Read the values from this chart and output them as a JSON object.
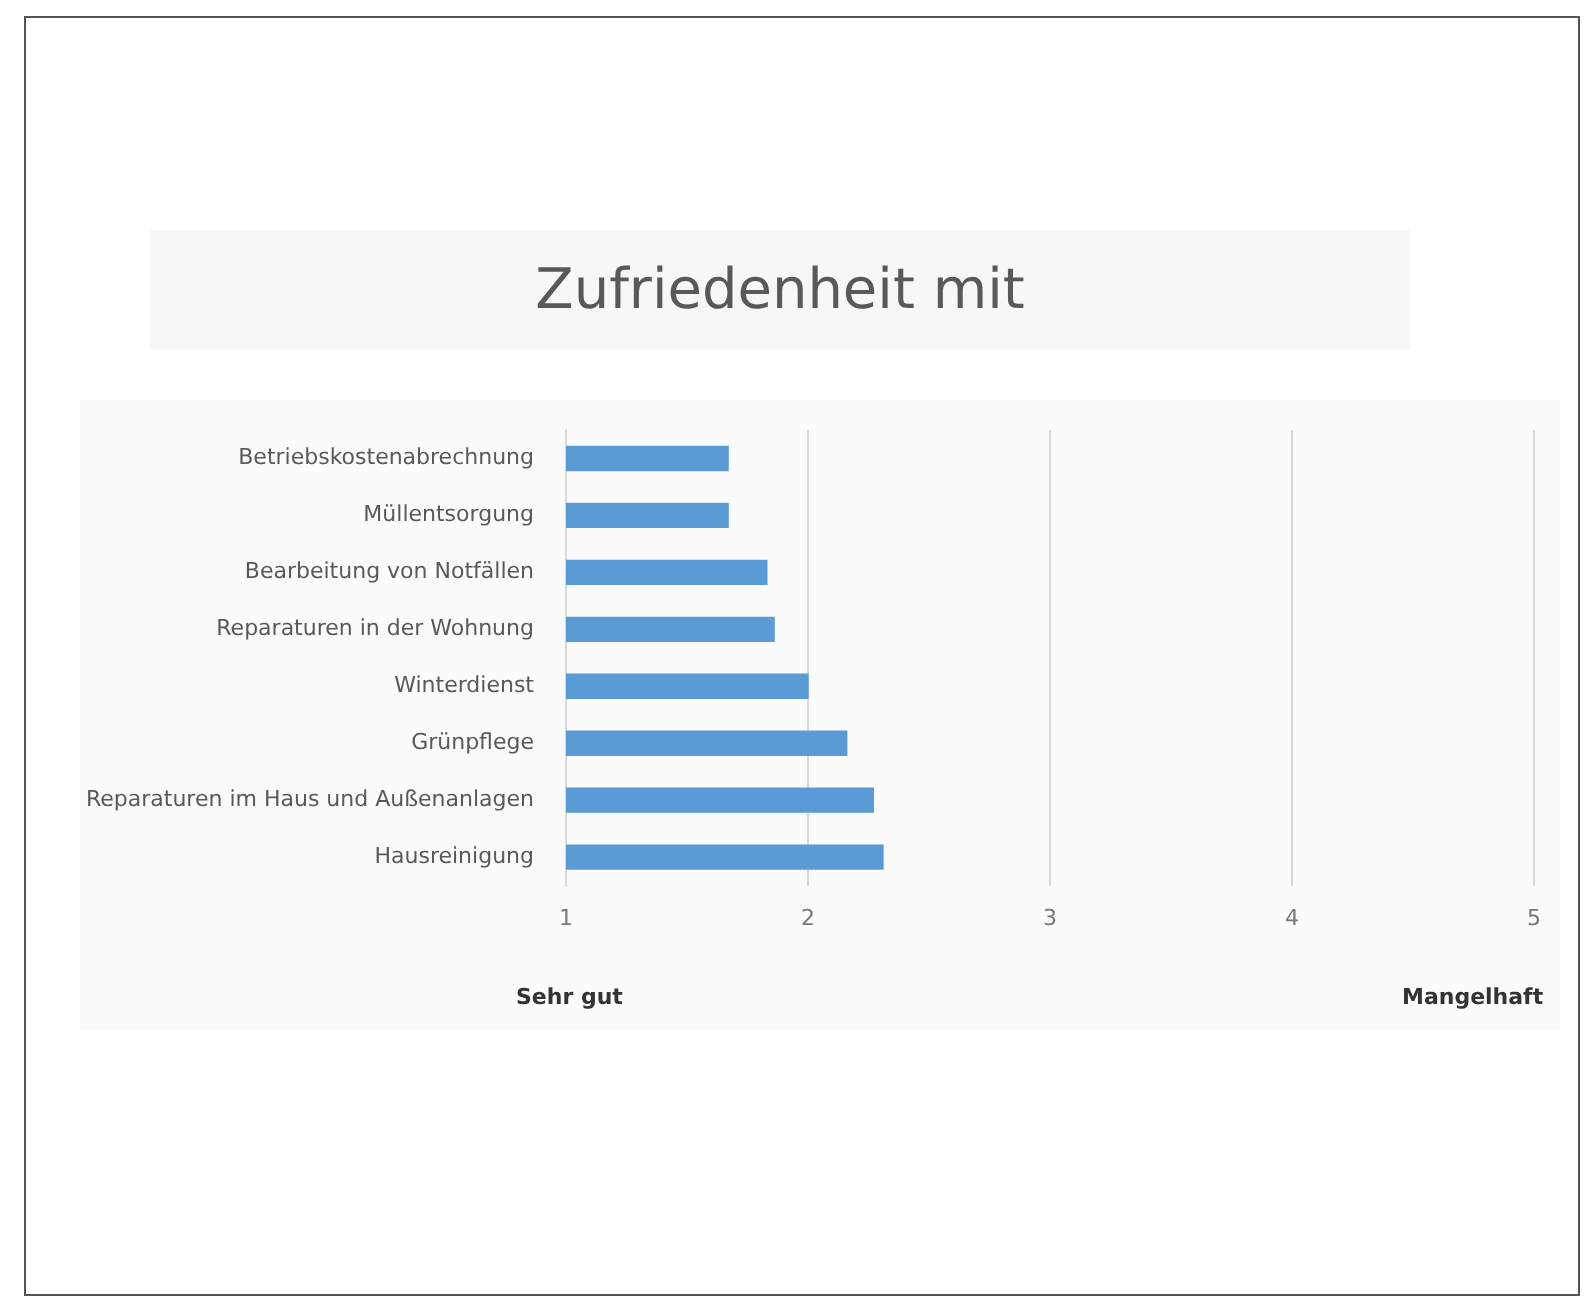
{
  "chart_data": {
    "type": "bar",
    "orientation": "horizontal",
    "title": "Zufriedenheit mit",
    "categories": [
      "Betriebskostenabrechnung",
      "Müllentsorgung",
      "Bearbeitung von Notfällen",
      "Reparaturen in der Wohnung",
      "Winterdienst",
      "Grünpflege",
      "Reparaturen im Haus und Außenanlagen",
      "Hausreinigung"
    ],
    "values": [
      1.67,
      1.67,
      1.83,
      1.86,
      2.0,
      2.16,
      2.27,
      2.31
    ],
    "color": "#5b9bd5",
    "xlim": [
      1,
      5
    ],
    "xticks": [
      1,
      2,
      3,
      4,
      5
    ],
    "grid": "x",
    "legend": false,
    "annotations": [
      "Sehr gut",
      "Mangelhaft"
    ]
  }
}
